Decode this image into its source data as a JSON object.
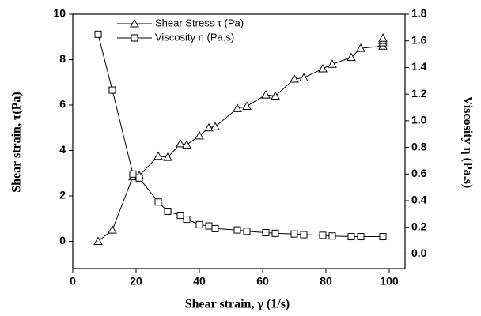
{
  "chart_data": {
    "type": "line",
    "xlabel": "Shear strain, γ (1/s)",
    "ylabel": "Shear strain, τ(Pa)",
    "y2label": "Viscosity η (Pa.s)",
    "xlim": [
      0,
      105
    ],
    "xticks": [
      0,
      20,
      40,
      60,
      80,
      100
    ],
    "ylim": [
      -1.2,
      10
    ],
    "yticks": [
      0,
      2,
      4,
      6,
      8,
      10
    ],
    "y2lim": [
      -0.11,
      1.8
    ],
    "y2ticks": [
      {
        "value": 0,
        "label": "0.0"
      },
      0.2,
      0.4,
      0.6,
      0.8,
      {
        "value": 1,
        "label": "1.0"
      },
      1.2,
      1.4,
      1.6,
      1.8
    ],
    "legend": "upper left",
    "series": [
      {
        "name": "Shear Stress τ (Pa)",
        "color": "#000000",
        "marker": "triangle",
        "x": [
          8,
          12.5,
          19,
          21,
          27,
          30,
          34,
          36,
          40,
          43,
          45,
          52,
          55,
          61,
          64,
          70,
          73,
          79,
          82,
          88,
          91,
          98,
          98,
          98,
          98
        ],
        "values": [
          0,
          0.5,
          2.85,
          2.9,
          3.75,
          3.7,
          4.3,
          4.25,
          4.65,
          5.0,
          5.05,
          5.85,
          5.95,
          6.45,
          6.4,
          7.15,
          7.2,
          7.6,
          7.8,
          8.1,
          8.5,
          8.6,
          8.75,
          8.85,
          8.95
        ]
      },
      {
        "name": "Viscosity η (Pa.s)",
        "color": "#000000",
        "marker": "square",
        "axis": "y2",
        "x": [
          8,
          12.5,
          19,
          21,
          27,
          30,
          34,
          36,
          40,
          43,
          45,
          52,
          55,
          61,
          64,
          70,
          73,
          79,
          82,
          88,
          91,
          98
        ],
        "values": [
          1.65,
          1.23,
          0.6,
          0.57,
          0.39,
          0.32,
          0.29,
          0.26,
          0.22,
          0.21,
          0.19,
          0.18,
          0.17,
          0.16,
          0.155,
          0.15,
          0.145,
          0.14,
          0.135,
          0.13,
          0.13,
          0.13
        ]
      }
    ]
  }
}
